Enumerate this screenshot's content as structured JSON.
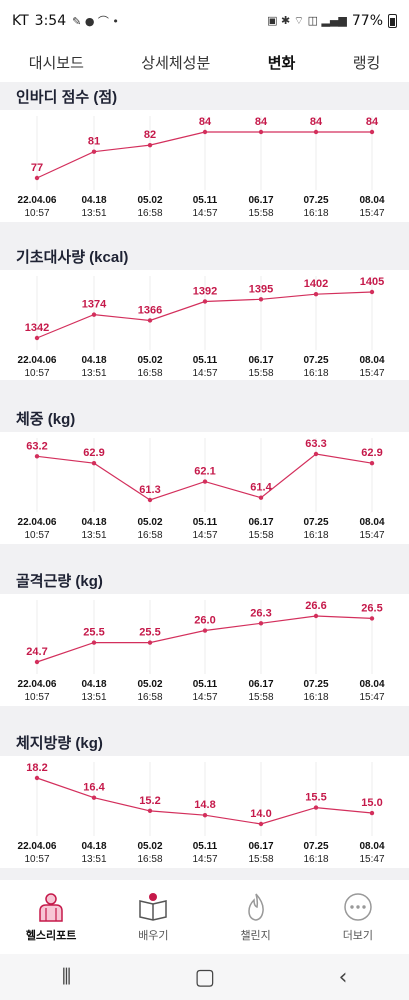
{
  "status_bar": {
    "carrier": "KT",
    "time": "3:54",
    "battery": "77%"
  },
  "tabs": [
    {
      "label": "대시보드"
    },
    {
      "label": "상세체성분"
    },
    {
      "label": "변화"
    },
    {
      "label": "랭킹"
    }
  ],
  "colors": {
    "accent": "#c5194a",
    "line": "#d32f5c"
  },
  "dates": [
    "22.04.06",
    "04.18",
    "05.02",
    "05.11",
    "06.17",
    "07.25",
    "08.04"
  ],
  "times": [
    "10:57",
    "13:51",
    "16:58",
    "14:57",
    "15:58",
    "16:18",
    "15:47"
  ],
  "sections": [
    {
      "title": "인바디 점수 (점)",
      "chart_data": {
        "type": "line",
        "values": [
          77,
          81,
          82,
          84,
          84,
          84,
          84
        ],
        "labels": [
          "77",
          "81",
          "82",
          "84",
          "84",
          "84",
          "84"
        ]
      }
    },
    {
      "title": "기초대사량 (kcal)",
      "chart_data": {
        "type": "line",
        "values": [
          1342,
          1374,
          1366,
          1392,
          1395,
          1402,
          1405
        ],
        "labels": [
          "1342",
          "1374",
          "1366",
          "1392",
          "1395",
          "1402",
          "1405"
        ]
      }
    },
    {
      "title": "체중 (kg)",
      "chart_data": {
        "type": "line",
        "values": [
          63.2,
          62.9,
          61.3,
          62.1,
          61.4,
          63.3,
          62.9
        ],
        "labels": [
          "63.2",
          "62.9",
          "61.3",
          "62.1",
          "61.4",
          "63.3",
          "62.9"
        ]
      }
    },
    {
      "title": "골격근량 (kg)",
      "chart_data": {
        "type": "line",
        "values": [
          24.7,
          25.5,
          25.5,
          26.0,
          26.3,
          26.6,
          26.5
        ],
        "labels": [
          "24.7",
          "25.5",
          "25.5",
          "26.0",
          "26.3",
          "26.6",
          "26.5"
        ]
      }
    },
    {
      "title": "체지방량 (kg)",
      "chart_data": {
        "type": "line",
        "values": [
          18.2,
          16.4,
          15.2,
          14.8,
          14.0,
          15.5,
          15.0
        ],
        "labels": [
          "18.2",
          "16.4",
          "15.2",
          "14.8",
          "14.0",
          "15.5",
          "15.0"
        ]
      }
    }
  ],
  "bottom_nav": [
    {
      "label": "헬스리포트",
      "icon": "health-report-icon"
    },
    {
      "label": "배우기",
      "icon": "learn-book-icon"
    },
    {
      "label": "챌린지",
      "icon": "challenge-flame-icon"
    },
    {
      "label": "더보기",
      "icon": "more-dots-icon"
    }
  ]
}
